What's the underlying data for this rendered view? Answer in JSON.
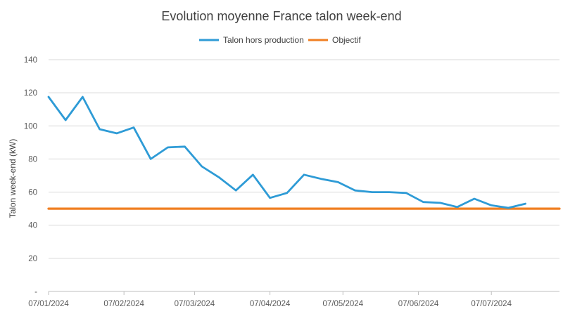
{
  "chart_data": {
    "type": "line",
    "title": "Evolution moyenne France talon week-end",
    "xlabel": "",
    "ylabel": "Talon week-end (kW)",
    "ylim": [
      0,
      140
    ],
    "y_ticks": [
      {
        "value": 0,
        "label": "-"
      },
      {
        "value": 20,
        "label": "20"
      },
      {
        "value": 40,
        "label": "40"
      },
      {
        "value": 60,
        "label": "60"
      },
      {
        "value": 80,
        "label": "80"
      },
      {
        "value": 100,
        "label": "100"
      },
      {
        "value": 120,
        "label": "120"
      },
      {
        "value": 140,
        "label": "140"
      }
    ],
    "x_ticks": [
      "07/01/2024",
      "07/02/2024",
      "07/03/2024",
      "07/04/2024",
      "07/05/2024",
      "07/06/2024",
      "07/07/2024"
    ],
    "xlim": [
      "2024-01-07",
      "2024-08-04"
    ],
    "grid": true,
    "legend": "top-center",
    "series": [
      {
        "name": "Talon hors production",
        "color": "#2E9BD6",
        "points": [
          {
            "x": "2024-01-07",
            "y": 117.5
          },
          {
            "x": "2024-01-14",
            "y": 103.5
          },
          {
            "x": "2024-01-21",
            "y": 117.5
          },
          {
            "x": "2024-01-28",
            "y": 98
          },
          {
            "x": "2024-02-04",
            "y": 95.5
          },
          {
            "x": "2024-02-11",
            "y": 99
          },
          {
            "x": "2024-02-18",
            "y": 80
          },
          {
            "x": "2024-02-25",
            "y": 87
          },
          {
            "x": "2024-03-03",
            "y": 87.5
          },
          {
            "x": "2024-03-10",
            "y": 75.5
          },
          {
            "x": "2024-03-17",
            "y": 69
          },
          {
            "x": "2024-03-24",
            "y": 61
          },
          {
            "x": "2024-03-31",
            "y": 70.5
          },
          {
            "x": "2024-04-07",
            "y": 56.5
          },
          {
            "x": "2024-04-14",
            "y": 59.5
          },
          {
            "x": "2024-04-21",
            "y": 70.5
          },
          {
            "x": "2024-04-28",
            "y": 68
          },
          {
            "x": "2024-05-05",
            "y": 66
          },
          {
            "x": "2024-05-12",
            "y": 61
          },
          {
            "x": "2024-05-19",
            "y": 60
          },
          {
            "x": "2024-05-26",
            "y": 60
          },
          {
            "x": "2024-06-02",
            "y": 59.5
          },
          {
            "x": "2024-06-09",
            "y": 54
          },
          {
            "x": "2024-06-16",
            "y": 53.5
          },
          {
            "x": "2024-06-23",
            "y": 51
          },
          {
            "x": "2024-06-30",
            "y": 56
          },
          {
            "x": "2024-07-07",
            "y": 52
          },
          {
            "x": "2024-07-14",
            "y": 50.5
          },
          {
            "x": "2024-07-21",
            "y": 53
          }
        ]
      },
      {
        "name": "Objectif",
        "color": "#F07F22",
        "points": [
          {
            "x": "2024-01-07",
            "y": 50
          },
          {
            "x": "2024-08-04",
            "y": 50
          }
        ]
      }
    ]
  }
}
